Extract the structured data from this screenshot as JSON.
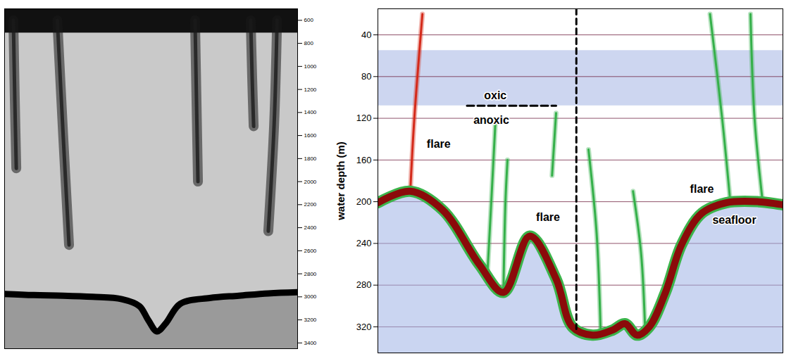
{
  "chart_data": [
    {
      "type": "echogram",
      "tick_labels": "y",
      "xlim": [
        0,
        100
      ],
      "ylim": [
        500,
        3450
      ],
      "yticks": [
        600,
        800,
        1000,
        1200,
        1400,
        1600,
        1800,
        2000,
        2200,
        2400,
        2600,
        2800,
        3000,
        3200,
        3400
      ],
      "surface_noise_bottom": 710,
      "seafloor": {
        "color": "#000000",
        "x": [
          0,
          10,
          20,
          30,
          40,
          46,
          49,
          52,
          55,
          60,
          70,
          80,
          90,
          100
        ],
        "depth": [
          2975,
          2985,
          2990,
          3000,
          3020,
          3080,
          3200,
          3300,
          3230,
          3060,
          3010,
          2990,
          2970,
          2960
        ]
      },
      "flares": [
        {
          "color": "#1a1a1a",
          "x": [
            3,
            3.5,
            4
          ],
          "depth": [
            600,
            1300,
            1885
          ]
        },
        {
          "color": "#1a1a1a",
          "x": [
            18,
            20,
            22
          ],
          "depth": [
            600,
            1600,
            2550
          ]
        },
        {
          "color": "#1a1a1a",
          "x": [
            65,
            65.5,
            66
          ],
          "depth": [
            600,
            1300,
            2000
          ]
        },
        {
          "color": "#1a1a1a",
          "x": [
            84,
            84.5,
            85
          ],
          "depth": [
            600,
            1100,
            1520
          ]
        },
        {
          "color": "#1a1a1a",
          "x": [
            93,
            92,
            90
          ],
          "depth": [
            600,
            1500,
            2430
          ]
        }
      ]
    },
    {
      "type": "echogram",
      "tick_labels": "y",
      "grid": true,
      "y_label": "water depth (m)",
      "xlim": [
        0,
        100
      ],
      "ylim": [
        15,
        345
      ],
      "yticks": [
        40,
        80,
        120,
        160,
        200,
        240,
        280,
        320
      ],
      "scattering_layer": {
        "top": 55,
        "bottom": 108
      },
      "boundary": {
        "x": [
          22,
          44
        ],
        "depth": 108
      },
      "profile_line": {
        "x": 49,
        "depth": [
          15,
          322
        ]
      },
      "seafloor": {
        "color": "#8b0a0a",
        "x": [
          0,
          8,
          16,
          25,
          31,
          37.5,
          44,
          48,
          53,
          58,
          61,
          64,
          67,
          71,
          75,
          80,
          86,
          94,
          100
        ],
        "depth": [
          201,
          190,
          208,
          260,
          287,
          233,
          274,
          320,
          328,
          323,
          317,
          328,
          320,
          287,
          241,
          211,
          201,
          200,
          203
        ]
      },
      "flares": [
        {
          "color": "#d42a1a",
          "x": [
            8,
            9,
            11
          ],
          "depth": [
            190,
            120,
            20
          ]
        },
        {
          "color": "#35b04a",
          "x": [
            27,
            28,
            29
          ],
          "depth": [
            272,
            200,
            125
          ]
        },
        {
          "color": "#35b04a",
          "x": [
            31,
            31.5,
            32
          ],
          "depth": [
            285,
            200,
            160
          ]
        },
        {
          "color": "#35b04a",
          "x": [
            43,
            44
          ],
          "depth": [
            175,
            115
          ]
        },
        {
          "color": "#35b04a",
          "x": [
            55,
            54,
            52
          ],
          "depth": [
            325,
            230,
            150
          ]
        },
        {
          "color": "#35b04a",
          "x": [
            66,
            65,
            63
          ],
          "depth": [
            325,
            250,
            190
          ]
        },
        {
          "color": "#35b04a",
          "x": [
            87,
            85,
            82
          ],
          "depth": [
            200,
            120,
            20
          ]
        },
        {
          "color": "#35b04a",
          "x": [
            95,
            93,
            92
          ],
          "depth": [
            200,
            120,
            20
          ]
        }
      ],
      "annotations": [
        {
          "text": "oxic",
          "x": 29,
          "y": 98
        },
        {
          "text": "anoxic",
          "x": 28,
          "y": 122
        },
        {
          "text": "flare",
          "x": 15,
          "y": 145
        },
        {
          "text": "flare",
          "x": 42,
          "y": 215
        },
        {
          "text": "flare",
          "x": 80,
          "y": 188
        },
        {
          "text": "seafloor",
          "x": 88,
          "y": 218
        }
      ]
    }
  ]
}
